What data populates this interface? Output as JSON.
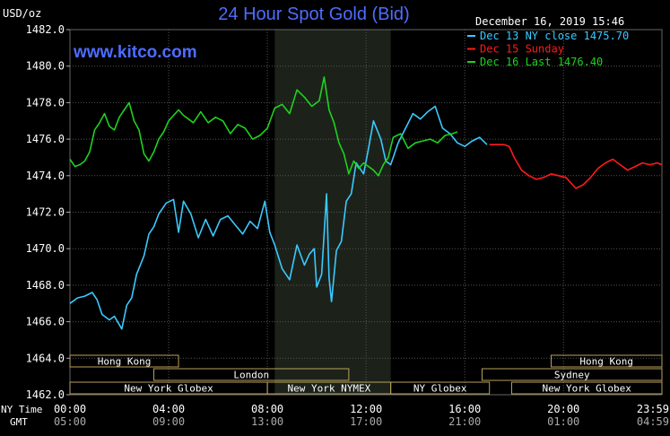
{
  "header": {
    "unit": "USD/oz",
    "title": "24 Hour Spot Gold (Bid)",
    "timestamp": "December 16, 2019 15:46",
    "watermark": "www.kitco.com"
  },
  "legend": [
    {
      "label": "Dec 13 NY close 1475.70",
      "color": "#3cc8ff"
    },
    {
      "label": "Dec 15 Sunday",
      "color": "#ff1a1a"
    },
    {
      "label": "Dec 16 Last 1476.40",
      "color": "#1ed21e"
    }
  ],
  "time_rows": {
    "ny_label": "NY Time",
    "gmt_label": "GMT",
    "ny_ticks": [
      "00:00",
      "04:00",
      "08:00",
      "12:00",
      "16:00",
      "20:00",
      "23:59"
    ],
    "gmt_ticks": [
      "05:00",
      "09:00",
      "13:00",
      "17:00",
      "21:00",
      "01:00",
      "04:59"
    ]
  },
  "sessions": {
    "row1": [
      {
        "label": "Hong Kong",
        "start": 0,
        "end": 4.4
      },
      {
        "label": "Hong Kong",
        "start": 19.5,
        "end": 23.99
      }
    ],
    "row2": [
      {
        "label": "London",
        "start": 3.4,
        "end": 11.3
      },
      {
        "label": "Sydney",
        "start": 16.7,
        "end": 23.99
      }
    ],
    "row3": [
      {
        "label": "New York Globex",
        "start": 0,
        "end": 8.0
      },
      {
        "label": "New York NYMEX",
        "start": 8.0,
        "end": 13.0
      },
      {
        "label": "NY Globex",
        "start": 13.0,
        "end": 17.0
      },
      {
        "label": "New York Globex",
        "start": 17.9,
        "end": 23.99
      }
    ]
  },
  "chart_data": {
    "type": "line",
    "ylabel": "USD/oz",
    "x_unit": "hours (NY time)",
    "xlim": [
      0,
      23.99
    ],
    "ylim": [
      1462.0,
      1482.0
    ],
    "y_ticks": [
      "1462.0",
      "1464.0",
      "1466.0",
      "1468.0",
      "1470.0",
      "1472.0",
      "1474.0",
      "1476.0",
      "1478.0",
      "1480.0",
      "1482.0"
    ],
    "grid": true,
    "shaded_region": [
      8.3,
      13.0
    ],
    "series": [
      {
        "name": "Dec 13 NY close 1475.70",
        "color": "#3cc8ff",
        "x": [
          0,
          0.3,
          0.6,
          0.9,
          1.1,
          1.3,
          1.6,
          1.8,
          2.1,
          2.3,
          2.5,
          2.7,
          3.0,
          3.2,
          3.4,
          3.6,
          3.9,
          4.2,
          4.4,
          4.6,
          4.9,
          5.2,
          5.5,
          5.8,
          6.1,
          6.4,
          6.7,
          7.0,
          7.3,
          7.6,
          7.9,
          8.1,
          8.3,
          8.6,
          8.9,
          9.2,
          9.5,
          9.7,
          9.9,
          10.0,
          10.2,
          10.4,
          10.5,
          10.6,
          10.8,
          11.0,
          11.2,
          11.4,
          11.6,
          11.9,
          12.1,
          12.3,
          12.6,
          12.8,
          13.0,
          13.3,
          13.6,
          13.9,
          14.2,
          14.5,
          14.8,
          15.1,
          15.4,
          15.7,
          16.0,
          16.3,
          16.6,
          16.9
        ],
        "y": [
          1467.0,
          1467.3,
          1467.4,
          1467.6,
          1467.2,
          1466.4,
          1466.1,
          1466.3,
          1465.6,
          1466.9,
          1467.3,
          1468.6,
          1469.6,
          1470.8,
          1471.2,
          1471.9,
          1472.5,
          1472.7,
          1470.9,
          1472.6,
          1471.9,
          1470.6,
          1471.6,
          1470.7,
          1471.6,
          1471.8,
          1471.3,
          1470.8,
          1471.5,
          1471.1,
          1472.6,
          1470.9,
          1470.2,
          1468.9,
          1468.3,
          1470.2,
          1469.1,
          1469.7,
          1470.0,
          1467.9,
          1468.6,
          1473.0,
          1468.4,
          1467.1,
          1469.9,
          1470.4,
          1472.6,
          1473.0,
          1474.7,
          1474.1,
          1475.5,
          1477.0,
          1476.0,
          1474.8,
          1474.6,
          1475.8,
          1476.6,
          1477.4,
          1477.1,
          1477.5,
          1477.8,
          1476.6,
          1476.3,
          1475.8,
          1475.6,
          1475.9,
          1476.1,
          1475.7
        ]
      },
      {
        "name": "Dec 15 Sunday",
        "color": "#ff1a1a",
        "x": [
          17.0,
          17.3,
          17.6,
          17.8,
          18.0,
          18.3,
          18.6,
          18.9,
          19.2,
          19.5,
          19.8,
          20.1,
          20.3,
          20.5,
          20.8,
          21.1,
          21.4,
          21.7,
          22.0,
          22.3,
          22.6,
          22.9,
          23.2,
          23.5,
          23.8,
          23.99
        ],
        "y": [
          1475.7,
          1475.7,
          1475.7,
          1475.6,
          1475.0,
          1474.3,
          1474.0,
          1473.8,
          1473.9,
          1474.1,
          1474.0,
          1473.9,
          1473.6,
          1473.3,
          1473.5,
          1473.9,
          1474.4,
          1474.7,
          1474.9,
          1474.6,
          1474.3,
          1474.5,
          1474.7,
          1474.6,
          1474.7,
          1474.6
        ]
      },
      {
        "name": "Dec 16 Last 1476.40",
        "color": "#1ed21e",
        "x": [
          0,
          0.2,
          0.4,
          0.6,
          0.8,
          1.0,
          1.2,
          1.4,
          1.6,
          1.8,
          2.0,
          2.2,
          2.4,
          2.6,
          2.8,
          3.0,
          3.2,
          3.4,
          3.6,
          3.8,
          4.0,
          4.2,
          4.4,
          4.6,
          4.8,
          5.0,
          5.3,
          5.6,
          5.9,
          6.2,
          6.5,
          6.8,
          7.1,
          7.4,
          7.7,
          8.0,
          8.3,
          8.6,
          8.9,
          9.2,
          9.5,
          9.8,
          10.1,
          10.3,
          10.5,
          10.7,
          10.9,
          11.1,
          11.3,
          11.5,
          11.7,
          11.9,
          12.1,
          12.3,
          12.5,
          12.7,
          12.9,
          13.1,
          13.4,
          13.7,
          14.0,
          14.3,
          14.6,
          14.9,
          15.2,
          15.5,
          15.7
        ],
        "y": [
          1474.9,
          1474.5,
          1474.6,
          1474.8,
          1475.3,
          1476.5,
          1476.9,
          1477.4,
          1476.7,
          1476.5,
          1477.2,
          1477.6,
          1478.0,
          1477.0,
          1476.5,
          1475.2,
          1474.8,
          1475.3,
          1476.0,
          1476.4,
          1477.0,
          1477.3,
          1477.6,
          1477.3,
          1477.1,
          1476.9,
          1477.5,
          1476.9,
          1477.2,
          1477.0,
          1476.3,
          1476.8,
          1476.6,
          1476.0,
          1476.2,
          1476.6,
          1477.7,
          1477.9,
          1477.4,
          1478.7,
          1478.3,
          1477.8,
          1478.1,
          1479.4,
          1477.6,
          1476.9,
          1475.8,
          1475.2,
          1474.1,
          1474.8,
          1474.4,
          1474.7,
          1474.5,
          1474.3,
          1474.0,
          1474.6,
          1475.0,
          1476.1,
          1476.3,
          1475.5,
          1475.8,
          1475.9,
          1476.0,
          1475.8,
          1476.2,
          1476.3,
          1476.4
        ]
      }
    ]
  }
}
